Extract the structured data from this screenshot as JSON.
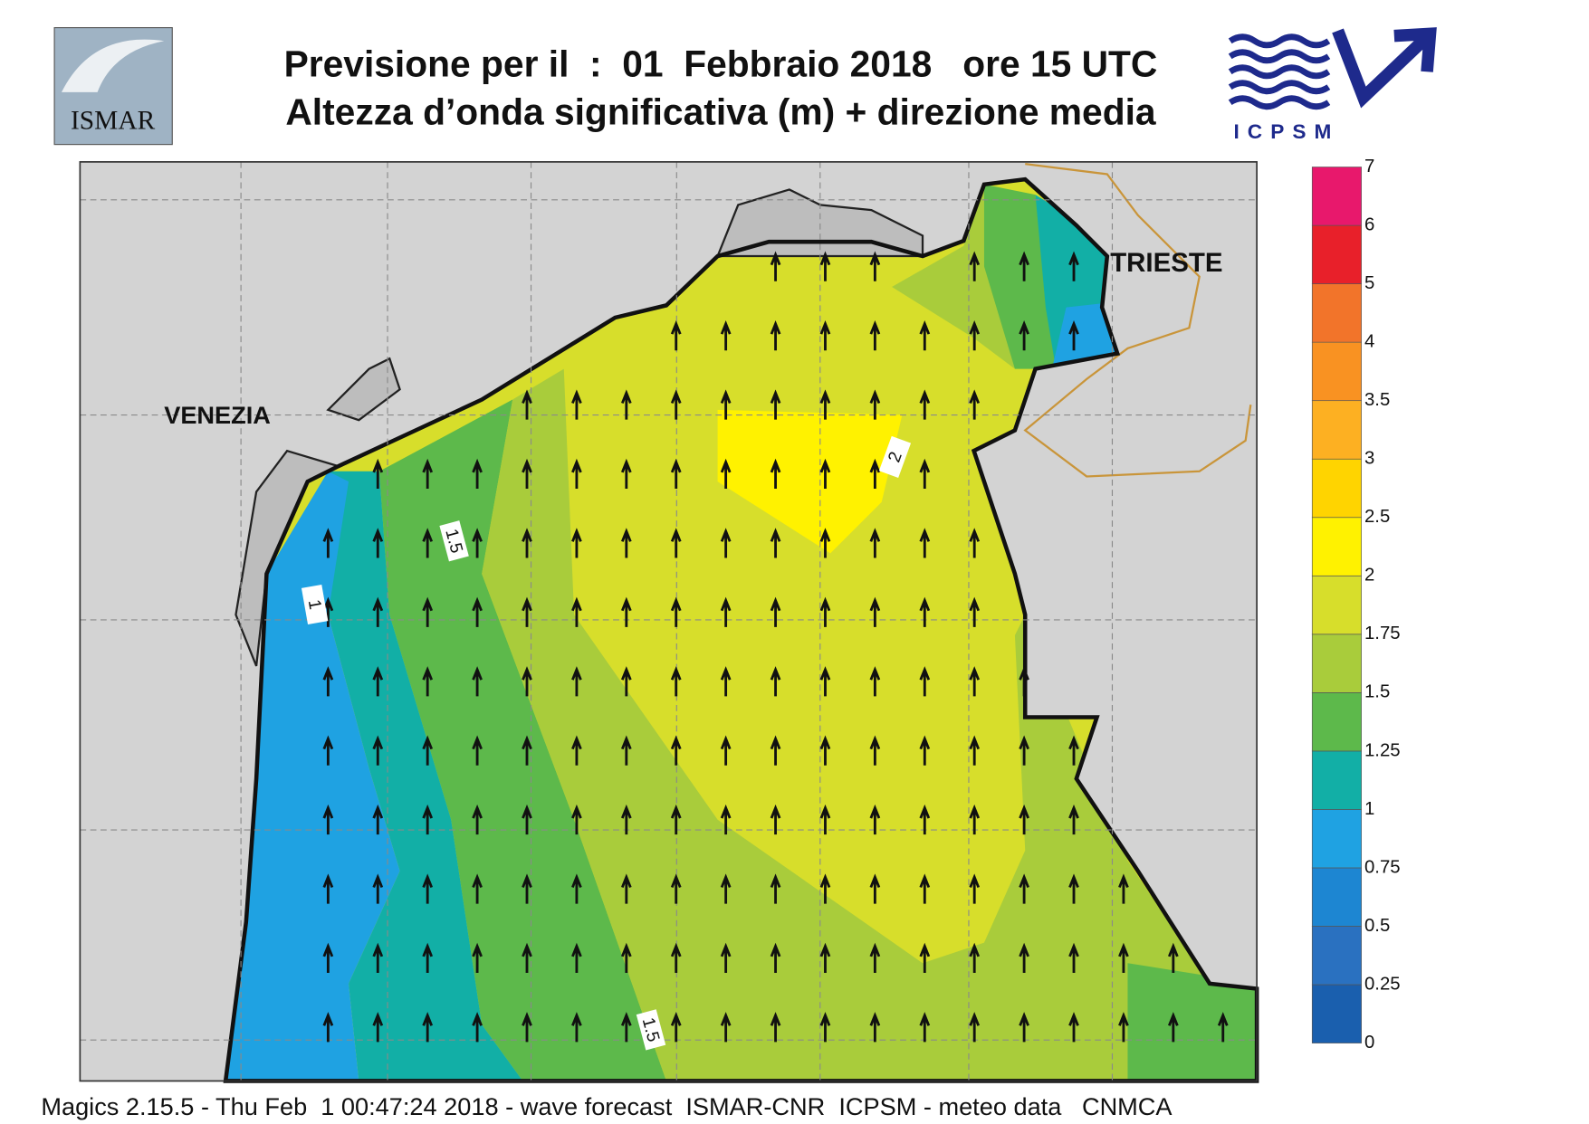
{
  "header": {
    "title_lines": [
      "Previsione per il  :  01  Febbraio 2018   ore 15 UTC",
      "Altezza d’onda significativa (m) + direzione media"
    ],
    "logo_left": "ISMAR",
    "logo_right": "ICPSM"
  },
  "map": {
    "places": [
      {
        "label": "VENEZIA"
      },
      {
        "label": "TRIESTE"
      }
    ],
    "contour_labels": [
      "1.5",
      "1",
      "2",
      "1.5"
    ]
  },
  "colorbar": {
    "levels": [
      0,
      0.25,
      0.5,
      0.75,
      1,
      1.25,
      1.5,
      1.75,
      2,
      2.5,
      3,
      3.5,
      4,
      5,
      6,
      7
    ],
    "colors": [
      "#1a5fae",
      "#2a71c0",
      "#1d86d2",
      "#1fa2e2",
      "#12afa6",
      "#5db94b",
      "#a9cc3b",
      "#d7de2b",
      "#fff200",
      "#ffd400",
      "#fdb022",
      "#f99222",
      "#f2742a",
      "#e8202a",
      "#e8186c"
    ]
  },
  "footer": "Magics 2.15.5 - Thu Feb  1 00:47:24 2018 - wave forecast  ISMAR-CNR  ICPSM - meteo data   CNMCA"
}
